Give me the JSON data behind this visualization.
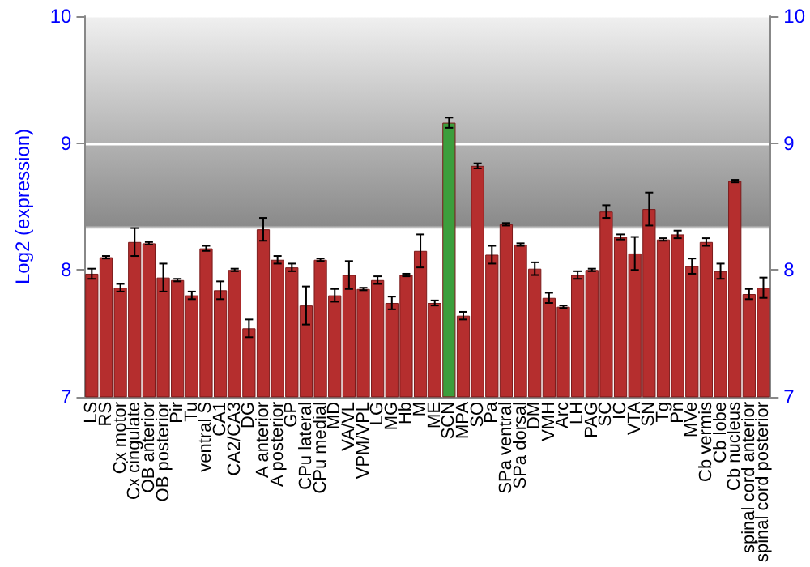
{
  "chart_data": {
    "type": "bar",
    "ylabel": "Log2 (expression)",
    "categories": [
      "LS",
      "RS",
      "Cx motor",
      "Cx cingulate",
      "OB anterior",
      "OB posterior",
      "Pir",
      "Tu",
      "ventral S",
      "CA1",
      "CA2/CA3",
      "DG",
      "A anterior",
      "A posterior",
      "GP",
      "CPu lateral",
      "CPu medial",
      "MD",
      "VA/VL",
      "VPM/VPL",
      "LG",
      "MG",
      "Hb",
      "M",
      "ME",
      "SCN",
      "MPA",
      "SO",
      "Pa",
      "SPa ventral",
      "SPa dorsal",
      "DM",
      "VMH",
      "Arc",
      "LH",
      "PAG",
      "SC",
      "IC",
      "VTA",
      "SN",
      "Tg",
      "Pn",
      "MVe",
      "Cb vermis",
      "Cb lobe",
      "Cb nucleus",
      "spinal cord anterior",
      "spinal cord posterior"
    ],
    "values": [
      7.97,
      8.1,
      7.86,
      8.22,
      8.21,
      7.94,
      7.92,
      7.8,
      8.17,
      7.84,
      8.0,
      7.54,
      8.32,
      8.08,
      8.02,
      7.72,
      8.08,
      7.8,
      7.96,
      7.85,
      7.92,
      7.74,
      7.96,
      8.15,
      7.74,
      9.16,
      7.64,
      8.82,
      8.12,
      8.36,
      8.2,
      8.01,
      7.78,
      7.71,
      7.96,
      8.0,
      8.46,
      8.26,
      8.13,
      8.48,
      8.24,
      8.28,
      8.03,
      8.22,
      7.99,
      8.7,
      7.81,
      7.86
    ],
    "errors": [
      0.04,
      0.01,
      0.03,
      0.11,
      0.01,
      0.11,
      0.01,
      0.03,
      0.02,
      0.07,
      0.01,
      0.07,
      0.09,
      0.03,
      0.03,
      0.15,
      0.01,
      0.05,
      0.11,
      0.01,
      0.03,
      0.05,
      0.01,
      0.13,
      0.02,
      0.04,
      0.03,
      0.02,
      0.07,
      0.01,
      0.01,
      0.05,
      0.04,
      0.01,
      0.03,
      0.01,
      0.05,
      0.02,
      0.13,
      0.13,
      0.01,
      0.03,
      0.06,
      0.03,
      0.06,
      0.01,
      0.04,
      0.08
    ],
    "colors": [
      "#b52e2e",
      "#b52e2e",
      "#b52e2e",
      "#b52e2e",
      "#b52e2e",
      "#b52e2e",
      "#b52e2e",
      "#b52e2e",
      "#b52e2e",
      "#b52e2e",
      "#b52e2e",
      "#b52e2e",
      "#b52e2e",
      "#b52e2e",
      "#b52e2e",
      "#b52e2e",
      "#b52e2e",
      "#b52e2e",
      "#b52e2e",
      "#b52e2e",
      "#b52e2e",
      "#b52e2e",
      "#b52e2e",
      "#b52e2e",
      "#b52e2e",
      "#3c9e3c",
      "#b52e2e",
      "#b52e2e",
      "#b52e2e",
      "#b52e2e",
      "#b52e2e",
      "#b52e2e",
      "#b52e2e",
      "#b52e2e",
      "#b52e2e",
      "#b52e2e",
      "#b52e2e",
      "#b52e2e",
      "#b52e2e",
      "#b52e2e",
      "#b52e2e",
      "#b52e2e",
      "#b52e2e",
      "#b52e2e",
      "#b52e2e",
      "#b52e2e",
      "#b52e2e",
      "#b52e2e"
    ],
    "ylim": [
      7,
      10
    ],
    "yticks": [
      7,
      8,
      9,
      10
    ],
    "y2lim": [
      7,
      10
    ],
    "y2ticks": [
      7,
      8,
      9,
      10
    ],
    "grid": "y"
  }
}
